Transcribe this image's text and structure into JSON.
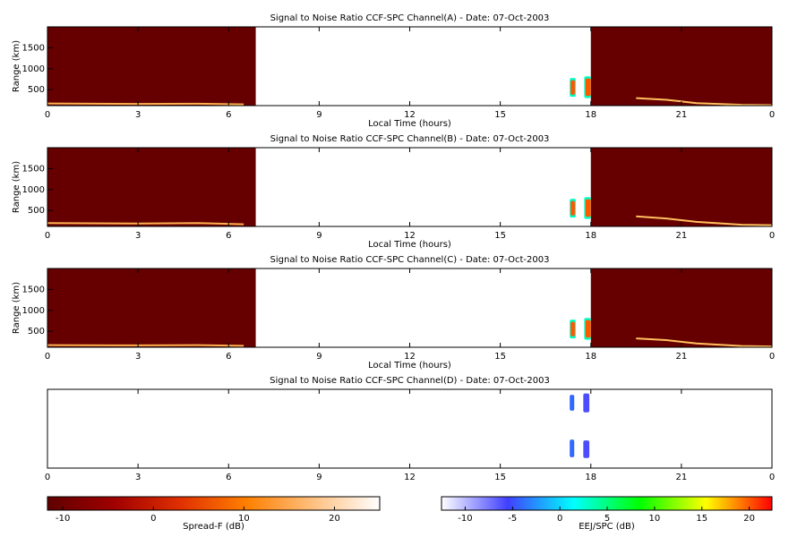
{
  "chart_data": [
    {
      "type": "heatmap",
      "title": "Signal to Noise Ratio CCF-SPC Channel(A) - Date: 07-Oct-2003",
      "xlabel": "Local Time (hours)",
      "ylabel": "Range (km)",
      "xlim": [
        0,
        24
      ],
      "xticks": [
        0,
        3,
        6,
        9,
        12,
        15,
        18,
        21,
        {
          "value": 24,
          "label": "0"
        }
      ],
      "ylim": [
        120,
        2000
      ],
      "yticks": [
        500,
        1000,
        1500
      ],
      "spread_f_regions": [
        {
          "x": [
            0,
            6.9
          ],
          "y": [
            120,
            2000
          ],
          "value": -11
        },
        {
          "x": [
            18,
            24
          ],
          "y": [
            120,
            2000
          ],
          "value": -11
        }
      ],
      "eej_regions": [
        {
          "x": [
            17.3,
            17.5
          ],
          "y": [
            330,
            780
          ],
          "value": 3
        },
        {
          "x": [
            17.33,
            17.47
          ],
          "y": [
            380,
            730
          ],
          "value": 20
        },
        {
          "x": [
            17.78,
            18
          ],
          "y": [
            300,
            820
          ],
          "value": 3
        },
        {
          "x": [
            17.82,
            18
          ],
          "y": [
            350,
            770
          ],
          "value": 20
        }
      ],
      "traces": [
        {
          "x": [
            0,
            3,
            5,
            6.5
          ],
          "y": [
            170,
            160,
            165,
            150
          ],
          "color": "#ffb050"
        },
        {
          "x": [
            19.5,
            20.5,
            21.5,
            23,
            24
          ],
          "y": [
            300,
            260,
            180,
            140,
            130
          ],
          "color": "#ffc060"
        }
      ]
    },
    {
      "type": "heatmap",
      "title": "Signal to Noise Ratio CCF-SPC Channel(B) - Date: 07-Oct-2003",
      "xlabel": "Local Time (hours)",
      "ylabel": "Range (km)",
      "xlim": [
        0,
        24
      ],
      "xticks": [
        0,
        3,
        6,
        9,
        12,
        15,
        18,
        21,
        {
          "value": 24,
          "label": "0"
        }
      ],
      "ylim": [
        120,
        2000
      ],
      "yticks": [
        500,
        1000,
        1500
      ],
      "spread_f_regions": [
        {
          "x": [
            0,
            6.9
          ],
          "y": [
            120,
            2000
          ],
          "value": -11
        },
        {
          "x": [
            18,
            24
          ],
          "y": [
            120,
            2000
          ],
          "value": -11
        }
      ],
      "eej_regions": [
        {
          "x": [
            17.3,
            17.5
          ],
          "y": [
            330,
            780
          ],
          "value": 3
        },
        {
          "x": [
            17.33,
            17.47
          ],
          "y": [
            380,
            730
          ],
          "value": 20
        },
        {
          "x": [
            17.78,
            18
          ],
          "y": [
            300,
            820
          ],
          "value": 3
        },
        {
          "x": [
            17.82,
            18
          ],
          "y": [
            350,
            770
          ],
          "value": 20
        }
      ],
      "traces": [
        {
          "x": [
            0,
            3,
            5,
            6.5
          ],
          "y": [
            200,
            190,
            200,
            170
          ],
          "color": "#ffb050"
        },
        {
          "x": [
            19.5,
            20.5,
            21.5,
            23,
            24
          ],
          "y": [
            360,
            310,
            230,
            160,
            150
          ],
          "color": "#ffc060"
        }
      ]
    },
    {
      "type": "heatmap",
      "title": "Signal to Noise Ratio CCF-SPC Channel(C) - Date: 07-Oct-2003",
      "xlabel": "Local Time (hours)",
      "ylabel": "Range (km)",
      "xlim": [
        0,
        24
      ],
      "xticks": [
        0,
        3,
        6,
        9,
        12,
        15,
        18,
        21,
        {
          "value": 24,
          "label": "0"
        }
      ],
      "ylim": [
        120,
        2000
      ],
      "yticks": [
        500,
        1000,
        1500
      ],
      "spread_f_regions": [
        {
          "x": [
            0,
            6.9
          ],
          "y": [
            120,
            2000
          ],
          "value": -11
        },
        {
          "x": [
            18,
            24
          ],
          "y": [
            120,
            2000
          ],
          "value": -11
        }
      ],
      "eej_regions": [
        {
          "x": [
            17.3,
            17.5
          ],
          "y": [
            330,
            780
          ],
          "value": 3
        },
        {
          "x": [
            17.33,
            17.47
          ],
          "y": [
            380,
            730
          ],
          "value": 20
        },
        {
          "x": [
            17.78,
            18
          ],
          "y": [
            300,
            820
          ],
          "value": 3
        },
        {
          "x": [
            17.82,
            18
          ],
          "y": [
            350,
            770
          ],
          "value": 20
        }
      ],
      "traces": [
        {
          "x": [
            0,
            3,
            5,
            6.5
          ],
          "y": [
            170,
            165,
            170,
            155
          ],
          "color": "#ffb050"
        },
        {
          "x": [
            19.5,
            20.5,
            21.5,
            23,
            24
          ],
          "y": [
            330,
            290,
            210,
            150,
            140
          ],
          "color": "#ffc060"
        }
      ]
    },
    {
      "type": "heatmap",
      "title": "Signal to Noise Ratio CCF-SPC Channel(D) - Date: 07-Oct-2003",
      "xlim": [
        0,
        24
      ],
      "xticks": [
        0,
        3,
        6,
        9,
        12,
        15,
        18,
        21,
        {
          "value": 24,
          "label": "0"
        }
      ],
      "ylim": [
        120,
        2000
      ],
      "spread_f_regions": [],
      "eej_regions": [
        {
          "x": [
            17.3,
            17.45
          ],
          "y": [
            1490,
            1870
          ],
          "value": -4
        },
        {
          "x": [
            17.75,
            17.95
          ],
          "y": [
            1450,
            1900
          ],
          "value": -6
        },
        {
          "x": [
            17.3,
            17.45
          ],
          "y": [
            380,
            800
          ],
          "value": -4
        },
        {
          "x": [
            17.75,
            17.95
          ],
          "y": [
            360,
            780
          ],
          "value": -6
        }
      ],
      "traces": []
    }
  ],
  "colorbars": [
    {
      "label": "Spread-F (dB)",
      "lim": [
        -11.7,
        25
      ],
      "ticks": [
        -10,
        0,
        10,
        20
      ],
      "colormap": [
        "#600000",
        "#a00000",
        "#e03000",
        "#ff8000",
        "#ffc080",
        "#ffffff"
      ]
    },
    {
      "label": "EEJ/SPC (dB)",
      "lim": [
        -12.5,
        22.4
      ],
      "ticks": [
        -10,
        -5,
        0,
        5,
        10,
        15,
        20
      ],
      "colormap": [
        "#ffffff",
        "#4040ff",
        "#00ffff",
        "#00ff00",
        "#ffff00",
        "#ff0000"
      ]
    }
  ]
}
